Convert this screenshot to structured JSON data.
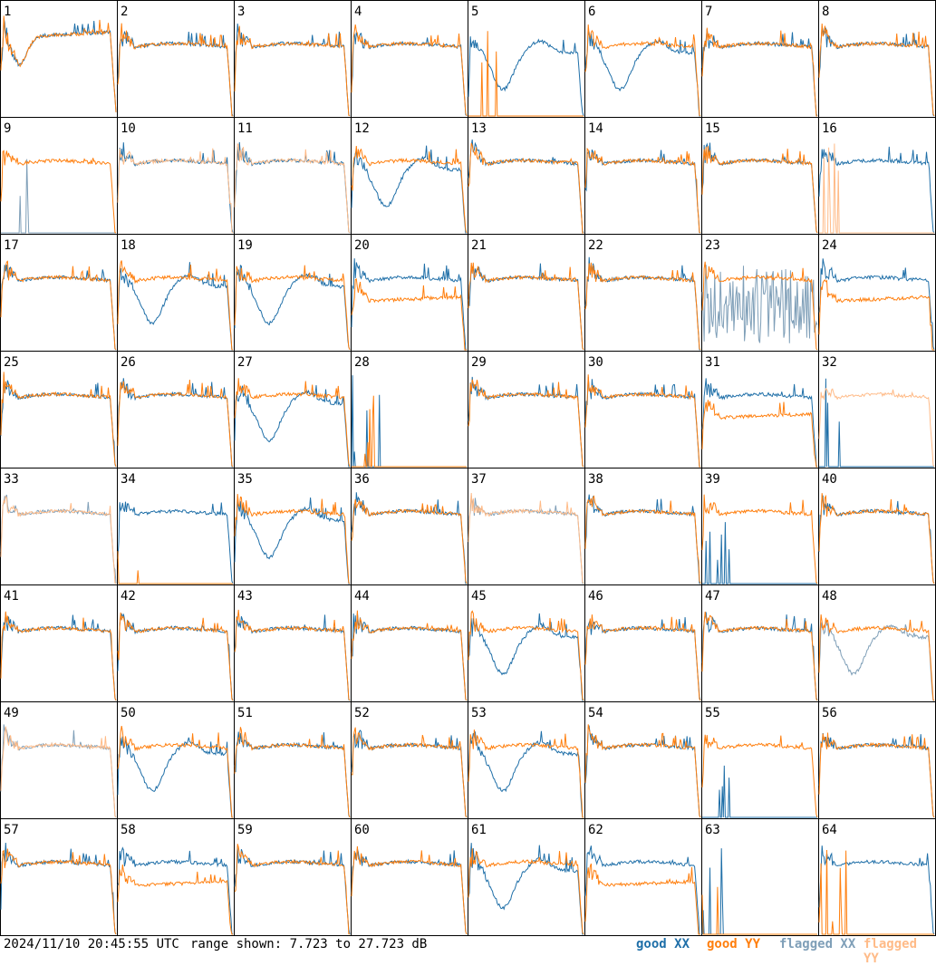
{
  "footer": {
    "timestamp": "2024/11/10 20:45:55 UTC",
    "range_text": "range shown: 7.723 to 27.723 dB"
  },
  "legend": [
    {
      "label": "good XX",
      "color": "#1f6fa8"
    },
    {
      "label": "good YY",
      "color": "#ff7f0e"
    },
    {
      "label": "flagged XX",
      "color": "#7f9fb8"
    },
    {
      "label": "flagged YY",
      "color": "#ffbb88"
    }
  ],
  "chart_data": {
    "type": "line",
    "title": "",
    "layout": "8x8 small multiples",
    "y_range_db": [
      7.723,
      27.723
    ],
    "panels": [
      {
        "id": "1",
        "xx": "bandpass",
        "yy": "bandpass"
      },
      {
        "id": "2",
        "xx": "good",
        "yy": "good"
      },
      {
        "id": "3",
        "xx": "good",
        "yy": "good"
      },
      {
        "id": "4",
        "xx": "good",
        "yy": "good"
      },
      {
        "id": "5",
        "xx": "dip",
        "yy": "dead"
      },
      {
        "id": "6",
        "xx": "dip",
        "yy": "good"
      },
      {
        "id": "7",
        "xx": "good",
        "yy": "good"
      },
      {
        "id": "8",
        "xx": "good",
        "yy": "good"
      },
      {
        "id": "9",
        "xx": "flagged-dead",
        "yy": "good"
      },
      {
        "id": "10",
        "xx": "good",
        "yy": "flagged"
      },
      {
        "id": "11",
        "xx": "good",
        "yy": "flagged"
      },
      {
        "id": "12",
        "xx": "dip",
        "yy": "good"
      },
      {
        "id": "13",
        "xx": "good",
        "yy": "good"
      },
      {
        "id": "14",
        "xx": "good",
        "yy": "good"
      },
      {
        "id": "15",
        "xx": "good",
        "yy": "good"
      },
      {
        "id": "16",
        "xx": "good",
        "yy": "flagged-dead"
      },
      {
        "id": "17",
        "xx": "good",
        "yy": "good"
      },
      {
        "id": "18",
        "xx": "dip",
        "yy": "good"
      },
      {
        "id": "19",
        "xx": "dip",
        "yy": "good"
      },
      {
        "id": "20",
        "xx": "good",
        "yy": "low"
      },
      {
        "id": "21",
        "xx": "good",
        "yy": "good"
      },
      {
        "id": "22",
        "xx": "good",
        "yy": "good"
      },
      {
        "id": "23",
        "xx": "flagged-noise",
        "yy": "good"
      },
      {
        "id": "24",
        "xx": "good",
        "yy": "low"
      },
      {
        "id": "25",
        "xx": "good",
        "yy": "good"
      },
      {
        "id": "26",
        "xx": "good",
        "yy": "good"
      },
      {
        "id": "27",
        "xx": "dip",
        "yy": "good"
      },
      {
        "id": "28",
        "xx": "dead",
        "yy": "dead"
      },
      {
        "id": "29",
        "xx": "good",
        "yy": "good"
      },
      {
        "id": "30",
        "xx": "good",
        "yy": "good"
      },
      {
        "id": "31",
        "xx": "good",
        "yy": "low"
      },
      {
        "id": "32",
        "xx": "dead",
        "yy": "flagged"
      },
      {
        "id": "33",
        "xx": "flagged",
        "yy": "flagged"
      },
      {
        "id": "34",
        "xx": "good",
        "yy": "dead"
      },
      {
        "id": "35",
        "xx": "dip",
        "yy": "good"
      },
      {
        "id": "36",
        "xx": "good",
        "yy": "good"
      },
      {
        "id": "37",
        "xx": "flagged",
        "yy": "flagged"
      },
      {
        "id": "38",
        "xx": "good",
        "yy": "good"
      },
      {
        "id": "39",
        "xx": "dead",
        "yy": "good"
      },
      {
        "id": "40",
        "xx": "good",
        "yy": "good"
      },
      {
        "id": "41",
        "xx": "good",
        "yy": "good"
      },
      {
        "id": "42",
        "xx": "good",
        "yy": "good"
      },
      {
        "id": "43",
        "xx": "good",
        "yy": "good"
      },
      {
        "id": "44",
        "xx": "good",
        "yy": "good"
      },
      {
        "id": "45",
        "xx": "dip",
        "yy": "good"
      },
      {
        "id": "46",
        "xx": "good",
        "yy": "good"
      },
      {
        "id": "47",
        "xx": "good",
        "yy": "good"
      },
      {
        "id": "48",
        "xx": "flagged-dip",
        "yy": "good"
      },
      {
        "id": "49",
        "xx": "flagged",
        "yy": "flagged"
      },
      {
        "id": "50",
        "xx": "dip",
        "yy": "good"
      },
      {
        "id": "51",
        "xx": "good",
        "yy": "good"
      },
      {
        "id": "52",
        "xx": "good",
        "yy": "good"
      },
      {
        "id": "53",
        "xx": "dip",
        "yy": "good"
      },
      {
        "id": "54",
        "xx": "good",
        "yy": "good"
      },
      {
        "id": "55",
        "xx": "dead",
        "yy": "good"
      },
      {
        "id": "56",
        "xx": "good",
        "yy": "good"
      },
      {
        "id": "57",
        "xx": "good",
        "yy": "good"
      },
      {
        "id": "58",
        "xx": "good",
        "yy": "low"
      },
      {
        "id": "59",
        "xx": "good",
        "yy": "good"
      },
      {
        "id": "60",
        "xx": "good",
        "yy": "good"
      },
      {
        "id": "61",
        "xx": "dip",
        "yy": "good"
      },
      {
        "id": "62",
        "xx": "good",
        "yy": "low"
      },
      {
        "id": "63",
        "xx": "dead",
        "yy": "dead"
      },
      {
        "id": "64",
        "xx": "good",
        "yy": "dead"
      }
    ]
  }
}
